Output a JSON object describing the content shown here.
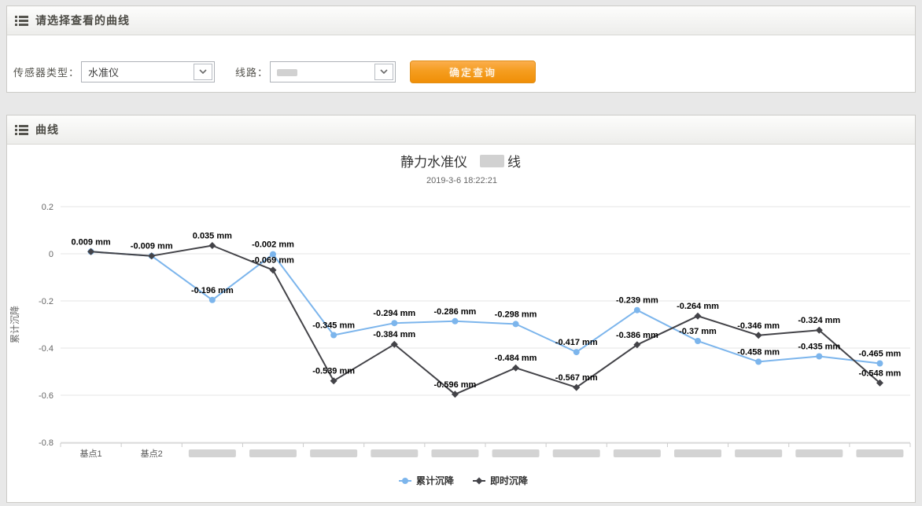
{
  "page": {
    "background": "#e8e8e8"
  },
  "select_panel": {
    "title": "请选择查看的曲线",
    "sensor_type": {
      "label": "传感器类型：",
      "value": "水准仪"
    },
    "line": {
      "label": "线路：",
      "value_redacted": true
    },
    "submit": {
      "label": "确定查询",
      "color": "#f5980f"
    }
  },
  "chart_panel": {
    "title": "曲线"
  },
  "chart_data": {
    "type": "line",
    "title": {
      "prefix": "静力水准仪 ",
      "redacted_segment": true,
      "suffix": "线"
    },
    "subtitle": "2019-3-6 18:22:21",
    "ylabel": "累计沉降",
    "unit": "mm",
    "ylim": [
      -0.8,
      0.2
    ],
    "yticks": [
      "0.2",
      "0",
      "-0.2",
      "-0.4",
      "-0.6",
      "-0.8"
    ],
    "ytick_values": [
      0.2,
      0,
      -0.2,
      -0.4,
      -0.6,
      -0.8
    ],
    "grid": true,
    "legend_position": "bottom-center",
    "categories": [
      "基点1",
      "基点2"
    ],
    "redacted_category_count": 12,
    "series": [
      {
        "name": "累计沉降",
        "color": "#7cb5ec",
        "marker": "circle",
        "values": [
          0.009,
          -0.009,
          -0.196,
          -0.002,
          -0.345,
          -0.294,
          -0.286,
          -0.298,
          -0.417,
          -0.239,
          -0.37,
          -0.458,
          -0.435,
          -0.465
        ],
        "labels": [
          "0.009 mm",
          "-0.009 mm",
          "-0.196 mm",
          "-0.002 mm",
          "-0.345 mm",
          "-0.294 mm",
          "-0.286 mm",
          "-0.298 mm",
          "-0.417 mm",
          "-0.239 mm",
          "-0.37 mm",
          "-0.458 mm",
          "-0.435 mm",
          "-0.465 mm"
        ]
      },
      {
        "name": "即时沉降",
        "color": "#434348",
        "marker": "diamond",
        "values": [
          0.009,
          -0.009,
          0.035,
          -0.069,
          -0.539,
          -0.384,
          -0.596,
          -0.484,
          -0.567,
          -0.386,
          -0.264,
          -0.346,
          -0.324,
          -0.548
        ],
        "labels": [
          null,
          null,
          "0.035 mm",
          "-0.069 mm",
          "-0.539 mm",
          "-0.384 mm",
          "-0.596 mm",
          "-0.484 mm",
          "-0.567 mm",
          "-0.386 mm",
          "-0.264 mm",
          "-0.346 mm",
          "-0.324 mm",
          "-0.548 mm"
        ]
      }
    ]
  }
}
